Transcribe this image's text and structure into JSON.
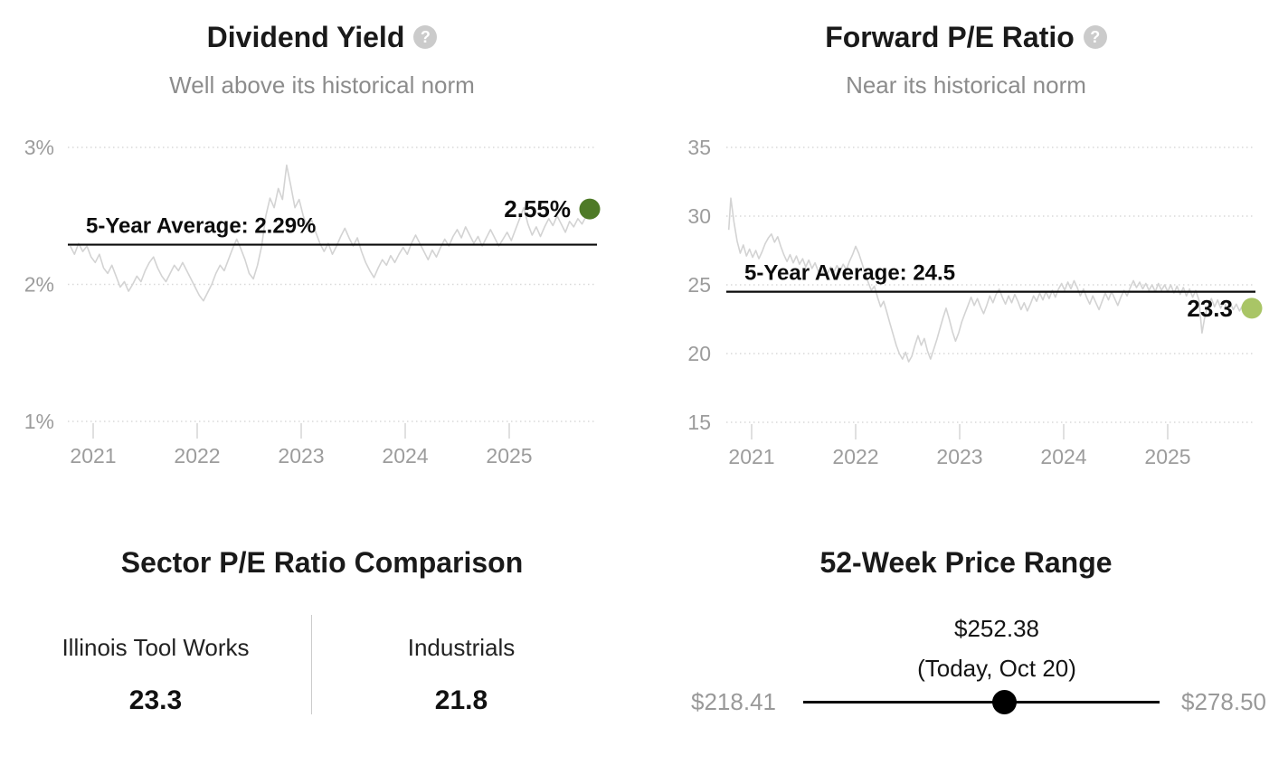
{
  "icons": {
    "help": "?"
  },
  "colors": {
    "title": "#1a1a1a",
    "subtitle": "#8c8c8c",
    "axis_text": "#9c9c9c",
    "series_line": "#d3d3d3",
    "gridline": "#d9d9d9",
    "average_line": "#0b0b0b",
    "dividend_dot": "#4e7a27",
    "pe_dot": "#a9c566",
    "range_extreme_text": "#999999",
    "range_track": "#000000"
  },
  "chart_data": [
    {
      "id": "dividend-yield",
      "type": "line",
      "title": "Dividend Yield",
      "subtitle": "Well above its historical norm",
      "xlim": [
        2020.78,
        2025.82
      ],
      "ylim": [
        1,
        3
      ],
      "grid": true,
      "yticks": [
        {
          "label": "3%",
          "value": 3
        },
        {
          "label": "2%",
          "value": 2
        },
        {
          "label": "1%",
          "value": 1
        }
      ],
      "xticks": [
        {
          "label": "2021",
          "value": 2021
        },
        {
          "label": "2022",
          "value": 2022
        },
        {
          "label": "2023",
          "value": 2023
        },
        {
          "label": "2024",
          "value": 2024
        },
        {
          "label": "2025",
          "value": 2025
        }
      ],
      "average": {
        "label": "5-Year Average: 2.29%",
        "value": 2.29
      },
      "current": {
        "label": "2.55%",
        "value": 2.55,
        "dot_color": "#4e7a27"
      },
      "series": [
        [
          2020.78,
          2.28
        ],
        [
          2020.82,
          2.22
        ],
        [
          2020.86,
          2.3
        ],
        [
          2020.9,
          2.24
        ],
        [
          2020.94,
          2.28
        ],
        [
          2020.98,
          2.2
        ],
        [
          2021.02,
          2.16
        ],
        [
          2021.06,
          2.22
        ],
        [
          2021.1,
          2.12
        ],
        [
          2021.14,
          2.08
        ],
        [
          2021.18,
          2.14
        ],
        [
          2021.22,
          2.06
        ],
        [
          2021.26,
          1.98
        ],
        [
          2021.3,
          2.02
        ],
        [
          2021.34,
          1.95
        ],
        [
          2021.38,
          2.0
        ],
        [
          2021.42,
          2.06
        ],
        [
          2021.46,
          2.02
        ],
        [
          2021.5,
          2.1
        ],
        [
          2021.54,
          2.16
        ],
        [
          2021.58,
          2.2
        ],
        [
          2021.62,
          2.12
        ],
        [
          2021.66,
          2.06
        ],
        [
          2021.7,
          2.02
        ],
        [
          2021.74,
          2.08
        ],
        [
          2021.78,
          2.14
        ],
        [
          2021.82,
          2.1
        ],
        [
          2021.86,
          2.16
        ],
        [
          2021.9,
          2.1
        ],
        [
          2021.94,
          2.04
        ],
        [
          2021.98,
          1.98
        ],
        [
          2022.02,
          1.92
        ],
        [
          2022.06,
          1.88
        ],
        [
          2022.1,
          1.94
        ],
        [
          2022.14,
          2.0
        ],
        [
          2022.18,
          2.08
        ],
        [
          2022.22,
          2.14
        ],
        [
          2022.26,
          2.1
        ],
        [
          2022.3,
          2.18
        ],
        [
          2022.34,
          2.26
        ],
        [
          2022.38,
          2.33
        ],
        [
          2022.42,
          2.26
        ],
        [
          2022.46,
          2.18
        ],
        [
          2022.5,
          2.08
        ],
        [
          2022.54,
          2.04
        ],
        [
          2022.58,
          2.14
        ],
        [
          2022.62,
          2.28
        ],
        [
          2022.66,
          2.5
        ],
        [
          2022.7,
          2.63
        ],
        [
          2022.74,
          2.56
        ],
        [
          2022.78,
          2.7
        ],
        [
          2022.82,
          2.62
        ],
        [
          2022.86,
          2.87
        ],
        [
          2022.9,
          2.72
        ],
        [
          2022.94,
          2.56
        ],
        [
          2022.98,
          2.62
        ],
        [
          2023.02,
          2.5
        ],
        [
          2023.06,
          2.42
        ],
        [
          2023.1,
          2.47
        ],
        [
          2023.14,
          2.38
        ],
        [
          2023.18,
          2.3
        ],
        [
          2023.22,
          2.24
        ],
        [
          2023.26,
          2.3
        ],
        [
          2023.3,
          2.22
        ],
        [
          2023.34,
          2.28
        ],
        [
          2023.38,
          2.35
        ],
        [
          2023.42,
          2.41
        ],
        [
          2023.46,
          2.34
        ],
        [
          2023.5,
          2.28
        ],
        [
          2023.54,
          2.34
        ],
        [
          2023.58,
          2.24
        ],
        [
          2023.62,
          2.16
        ],
        [
          2023.66,
          2.1
        ],
        [
          2023.7,
          2.05
        ],
        [
          2023.74,
          2.12
        ],
        [
          2023.78,
          2.18
        ],
        [
          2023.82,
          2.14
        ],
        [
          2023.86,
          2.21
        ],
        [
          2023.9,
          2.16
        ],
        [
          2023.94,
          2.22
        ],
        [
          2023.98,
          2.27
        ],
        [
          2024.02,
          2.22
        ],
        [
          2024.06,
          2.3
        ],
        [
          2024.1,
          2.36
        ],
        [
          2024.14,
          2.3
        ],
        [
          2024.18,
          2.24
        ],
        [
          2024.22,
          2.18
        ],
        [
          2024.26,
          2.25
        ],
        [
          2024.3,
          2.2
        ],
        [
          2024.34,
          2.27
        ],
        [
          2024.38,
          2.33
        ],
        [
          2024.42,
          2.28
        ],
        [
          2024.46,
          2.35
        ],
        [
          2024.5,
          2.4
        ],
        [
          2024.54,
          2.34
        ],
        [
          2024.58,
          2.42
        ],
        [
          2024.62,
          2.36
        ],
        [
          2024.66,
          2.3
        ],
        [
          2024.7,
          2.35
        ],
        [
          2024.74,
          2.28
        ],
        [
          2024.78,
          2.34
        ],
        [
          2024.82,
          2.4
        ],
        [
          2024.86,
          2.34
        ],
        [
          2024.9,
          2.28
        ],
        [
          2024.94,
          2.33
        ],
        [
          2024.98,
          2.38
        ],
        [
          2025.02,
          2.32
        ],
        [
          2025.06,
          2.4
        ],
        [
          2025.1,
          2.48
        ],
        [
          2025.14,
          2.56
        ],
        [
          2025.18,
          2.44
        ],
        [
          2025.22,
          2.36
        ],
        [
          2025.26,
          2.42
        ],
        [
          2025.3,
          2.35
        ],
        [
          2025.34,
          2.42
        ],
        [
          2025.38,
          2.48
        ],
        [
          2025.42,
          2.43
        ],
        [
          2025.46,
          2.5
        ],
        [
          2025.5,
          2.44
        ],
        [
          2025.54,
          2.38
        ],
        [
          2025.58,
          2.46
        ],
        [
          2025.62,
          2.42
        ],
        [
          2025.66,
          2.48
        ],
        [
          2025.7,
          2.44
        ],
        [
          2025.74,
          2.5
        ],
        [
          2025.78,
          2.55
        ]
      ]
    },
    {
      "id": "forward-pe",
      "type": "line",
      "title": "Forward P/E Ratio",
      "subtitle": "Near its historical norm",
      "xlim": [
        2020.78,
        2025.82
      ],
      "ylim": [
        15,
        35
      ],
      "grid": true,
      "yticks": [
        {
          "label": "35",
          "value": 35
        },
        {
          "label": "30",
          "value": 30
        },
        {
          "label": "25",
          "value": 25
        },
        {
          "label": "20",
          "value": 20
        },
        {
          "label": "15",
          "value": 15
        }
      ],
      "xticks": [
        {
          "label": "2021",
          "value": 2021
        },
        {
          "label": "2022",
          "value": 2022
        },
        {
          "label": "2023",
          "value": 2023
        },
        {
          "label": "2024",
          "value": 2024
        },
        {
          "label": "2025",
          "value": 2025
        }
      ],
      "average": {
        "label": "5-Year Average: 24.5",
        "value": 24.5
      },
      "current": {
        "label": "23.3",
        "value": 23.3,
        "dot_color": "#a9c566"
      },
      "series": [
        [
          2020.78,
          29.0
        ],
        [
          2020.8,
          31.3
        ],
        [
          2020.83,
          29.6
        ],
        [
          2020.86,
          28.2
        ],
        [
          2020.89,
          27.3
        ],
        [
          2020.92,
          27.9
        ],
        [
          2020.95,
          27.1
        ],
        [
          2020.98,
          27.6
        ],
        [
          2021.01,
          27.0
        ],
        [
          2021.04,
          27.5
        ],
        [
          2021.07,
          26.9
        ],
        [
          2021.1,
          27.4
        ],
        [
          2021.13,
          28.0
        ],
        [
          2021.16,
          28.4
        ],
        [
          2021.19,
          28.7
        ],
        [
          2021.22,
          28.1
        ],
        [
          2021.25,
          28.5
        ],
        [
          2021.28,
          27.8
        ],
        [
          2021.31,
          27.2
        ],
        [
          2021.34,
          26.7
        ],
        [
          2021.37,
          27.2
        ],
        [
          2021.4,
          26.6
        ],
        [
          2021.43,
          27.1
        ],
        [
          2021.46,
          26.5
        ],
        [
          2021.49,
          26.9
        ],
        [
          2021.52,
          26.3
        ],
        [
          2021.55,
          26.8
        ],
        [
          2021.58,
          26.2
        ],
        [
          2021.61,
          26.6
        ],
        [
          2021.64,
          26.0
        ],
        [
          2021.67,
          25.7
        ],
        [
          2021.7,
          26.2
        ],
        [
          2021.73,
          25.8
        ],
        [
          2021.76,
          26.3
        ],
        [
          2021.79,
          25.9
        ],
        [
          2021.82,
          26.4
        ],
        [
          2021.85,
          26.0
        ],
        [
          2021.88,
          26.5
        ],
        [
          2021.91,
          26.1
        ],
        [
          2021.94,
          26.7
        ],
        [
          2021.97,
          27.2
        ],
        [
          2022.0,
          27.8
        ],
        [
          2022.03,
          27.3
        ],
        [
          2022.06,
          26.6
        ],
        [
          2022.09,
          25.9
        ],
        [
          2022.12,
          25.2
        ],
        [
          2022.15,
          24.6
        ],
        [
          2022.18,
          24.9
        ],
        [
          2022.21,
          24.1
        ],
        [
          2022.24,
          23.4
        ],
        [
          2022.27,
          23.8
        ],
        [
          2022.3,
          23.0
        ],
        [
          2022.33,
          22.2
        ],
        [
          2022.36,
          21.4
        ],
        [
          2022.39,
          20.6
        ],
        [
          2022.42,
          20.0
        ],
        [
          2022.45,
          19.6
        ],
        [
          2022.48,
          20.1
        ],
        [
          2022.51,
          19.4
        ],
        [
          2022.54,
          19.8
        ],
        [
          2022.57,
          20.6
        ],
        [
          2022.6,
          21.3
        ],
        [
          2022.63,
          20.6
        ],
        [
          2022.66,
          21.1
        ],
        [
          2022.69,
          20.2
        ],
        [
          2022.72,
          19.6
        ],
        [
          2022.75,
          20.3
        ],
        [
          2022.78,
          21.0
        ],
        [
          2022.81,
          21.8
        ],
        [
          2022.84,
          22.6
        ],
        [
          2022.87,
          23.3
        ],
        [
          2022.9,
          22.5
        ],
        [
          2022.93,
          21.6
        ],
        [
          2022.96,
          20.9
        ],
        [
          2022.99,
          21.5
        ],
        [
          2023.02,
          22.3
        ],
        [
          2023.05,
          22.9
        ],
        [
          2023.08,
          23.5
        ],
        [
          2023.11,
          24.1
        ],
        [
          2023.14,
          23.5
        ],
        [
          2023.17,
          24.0
        ],
        [
          2023.2,
          23.4
        ],
        [
          2023.23,
          22.9
        ],
        [
          2023.26,
          23.5
        ],
        [
          2023.29,
          24.2
        ],
        [
          2023.32,
          23.7
        ],
        [
          2023.35,
          24.3
        ],
        [
          2023.38,
          24.7
        ],
        [
          2023.41,
          24.1
        ],
        [
          2023.44,
          23.6
        ],
        [
          2023.47,
          24.2
        ],
        [
          2023.5,
          23.7
        ],
        [
          2023.53,
          24.3
        ],
        [
          2023.56,
          23.8
        ],
        [
          2023.59,
          23.2
        ],
        [
          2023.62,
          23.7
        ],
        [
          2023.65,
          23.1
        ],
        [
          2023.68,
          23.6
        ],
        [
          2023.71,
          24.2
        ],
        [
          2023.74,
          23.8
        ],
        [
          2023.77,
          24.4
        ],
        [
          2023.8,
          23.9
        ],
        [
          2023.83,
          24.5
        ],
        [
          2023.86,
          24.0
        ],
        [
          2023.89,
          24.6
        ],
        [
          2023.92,
          24.1
        ],
        [
          2023.95,
          24.7
        ],
        [
          2023.98,
          25.1
        ],
        [
          2024.01,
          24.6
        ],
        [
          2024.04,
          25.2
        ],
        [
          2024.07,
          24.7
        ],
        [
          2024.1,
          25.3
        ],
        [
          2024.13,
          24.8
        ],
        [
          2024.16,
          24.2
        ],
        [
          2024.19,
          24.7
        ],
        [
          2024.22,
          24.1
        ],
        [
          2024.25,
          23.6
        ],
        [
          2024.28,
          24.2
        ],
        [
          2024.31,
          23.7
        ],
        [
          2024.34,
          23.2
        ],
        [
          2024.37,
          23.8
        ],
        [
          2024.4,
          24.4
        ],
        [
          2024.43,
          23.9
        ],
        [
          2024.46,
          24.5
        ],
        [
          2024.49,
          24.0
        ],
        [
          2024.52,
          23.5
        ],
        [
          2024.55,
          24.1
        ],
        [
          2024.58,
          24.6
        ],
        [
          2024.61,
          24.2
        ],
        [
          2024.64,
          24.8
        ],
        [
          2024.67,
          25.3
        ],
        [
          2024.7,
          24.8
        ],
        [
          2024.73,
          25.2
        ],
        [
          2024.76,
          24.7
        ],
        [
          2024.79,
          25.1
        ],
        [
          2024.82,
          24.6
        ],
        [
          2024.85,
          25.0
        ],
        [
          2024.88,
          24.5
        ],
        [
          2024.91,
          25.1
        ],
        [
          2024.94,
          24.6
        ],
        [
          2024.97,
          25.0
        ],
        [
          2025.0,
          24.5
        ],
        [
          2025.03,
          25.0
        ],
        [
          2025.06,
          24.4
        ],
        [
          2025.09,
          24.9
        ],
        [
          2025.12,
          24.3
        ],
        [
          2025.15,
          24.8
        ],
        [
          2025.18,
          24.2
        ],
        [
          2025.21,
          24.7
        ],
        [
          2025.24,
          24.1
        ],
        [
          2025.27,
          24.6
        ],
        [
          2025.3,
          23.9
        ],
        [
          2025.33,
          21.5
        ],
        [
          2025.36,
          22.8
        ],
        [
          2025.39,
          23.5
        ],
        [
          2025.42,
          24.0
        ],
        [
          2025.45,
          23.4
        ],
        [
          2025.48,
          23.9
        ],
        [
          2025.51,
          23.3
        ],
        [
          2025.54,
          23.8
        ],
        [
          2025.57,
          23.2
        ],
        [
          2025.6,
          23.7
        ],
        [
          2025.63,
          23.2
        ],
        [
          2025.66,
          23.6
        ],
        [
          2025.69,
          23.1
        ],
        [
          2025.72,
          23.5
        ],
        [
          2025.75,
          23.3
        ],
        [
          2025.78,
          23.3
        ]
      ]
    },
    {
      "id": "sector-pe-comparison",
      "type": "table",
      "title": "Sector P/E Ratio Comparison",
      "entities": [
        {
          "name": "Illinois Tool Works",
          "value": 23.3,
          "value_label": "23.3"
        },
        {
          "name": "Industrials",
          "value": 21.8,
          "value_label": "21.8"
        }
      ]
    },
    {
      "id": "52-week-price-range",
      "type": "range",
      "title": "52-Week Price Range",
      "low": 218.41,
      "high": 278.5,
      "current": 252.38,
      "low_label": "$218.41",
      "high_label": "$278.50",
      "current_label": "$252.38",
      "current_sublabel": "(Today, Oct 20)"
    }
  ]
}
